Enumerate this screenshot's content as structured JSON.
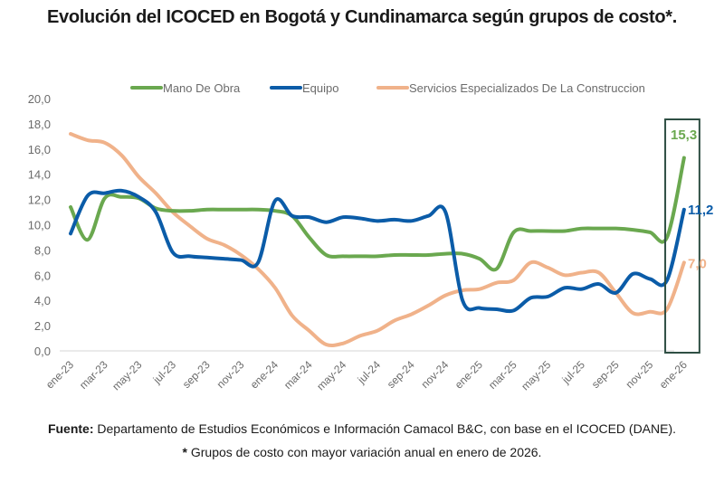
{
  "title": "Evolución del ICOCED en Bogotá y Cundinamarca según grupos de costo*.",
  "footer": {
    "source_label": "Fuente:",
    "source_text": " Departamento de Estudios Económicos e Información Camacol B&C, con base en el ICOCED (DANE).",
    "note_marker": "*",
    "note_text": " Grupos de costo con mayor variación anual en enero de 2026."
  },
  "chart_data": {
    "type": "line",
    "title": "Evolución del ICOCED en Bogotá y Cundinamarca según grupos de costo*.",
    "xlabel": "",
    "ylabel": "",
    "ylim": [
      0,
      20
    ],
    "yticks": [
      "0,0",
      "2,0",
      "4,0",
      "6,0",
      "8,0",
      "10,0",
      "12,0",
      "14,0",
      "16,0",
      "18,0",
      "20,0"
    ],
    "ytick_values": [
      0,
      2,
      4,
      6,
      8,
      10,
      12,
      14,
      16,
      18,
      20
    ],
    "grid": false,
    "legend_position": "top-center",
    "x": [
      "ene-23",
      "feb-23",
      "mar-23",
      "abr-23",
      "may-23",
      "jun-23",
      "jul-23",
      "ago-23",
      "sep-23",
      "oct-23",
      "nov-23",
      "dic-23",
      "ene-24",
      "feb-24",
      "mar-24",
      "abr-24",
      "may-24",
      "jun-24",
      "jul-24",
      "ago-24",
      "sep-24",
      "oct-24",
      "nov-24",
      "dic-24",
      "ene-25",
      "feb-25",
      "mar-25",
      "abr-25",
      "may-25",
      "jun-25",
      "jul-25",
      "ago-25",
      "sep-25",
      "oct-25",
      "nov-25",
      "dic-25",
      "ene-26"
    ],
    "xtick_labels": [
      "ene-23",
      "mar-23",
      "may-23",
      "jul-23",
      "sep-23",
      "nov-23",
      "ene-24",
      "mar-24",
      "may-24",
      "jul-24",
      "sep-24",
      "nov-24",
      "ene-25",
      "mar-25",
      "may-25",
      "jul-25",
      "sep-25",
      "nov-25",
      "ene-26"
    ],
    "series": [
      {
        "name": "Mano De Obra",
        "color": "#6aa84f",
        "values": [
          11.4,
          8.8,
          12.1,
          12.2,
          12.1,
          11.3,
          11.1,
          11.1,
          11.2,
          11.2,
          11.2,
          11.2,
          11.1,
          10.7,
          9.0,
          7.6,
          7.5,
          7.5,
          7.5,
          7.6,
          7.6,
          7.6,
          7.7,
          7.7,
          7.3,
          6.5,
          9.4,
          9.5,
          9.5,
          9.5,
          9.7,
          9.7,
          9.7,
          9.6,
          9.4,
          9.0,
          15.3
        ],
        "end_label": "15,3"
      },
      {
        "name": "Equipo",
        "color": "#0b5ca8",
        "values": [
          9.3,
          12.3,
          12.5,
          12.7,
          12.2,
          11.0,
          7.8,
          7.5,
          7.4,
          7.3,
          7.2,
          7.0,
          11.9,
          10.7,
          10.6,
          10.2,
          10.6,
          10.5,
          10.3,
          10.4,
          10.3,
          10.7,
          11.0,
          4.0,
          3.4,
          3.3,
          3.2,
          4.2,
          4.3,
          5.0,
          4.9,
          5.3,
          4.6,
          6.1,
          5.7,
          5.6,
          11.2
        ],
        "end_label": "11,2"
      },
      {
        "name": "Servicios Especializados De La Construccion",
        "color": "#f0b28a",
        "values": [
          17.2,
          16.7,
          16.5,
          15.5,
          13.8,
          12.5,
          11.0,
          9.9,
          8.9,
          8.4,
          7.6,
          6.5,
          5.0,
          2.8,
          1.6,
          0.5,
          0.6,
          1.2,
          1.6,
          2.4,
          2.9,
          3.6,
          4.4,
          4.8,
          4.9,
          5.4,
          5.6,
          7.0,
          6.6,
          6.0,
          6.2,
          6.2,
          4.6,
          3.0,
          3.1,
          3.3,
          7.0
        ],
        "end_label": "7,0"
      }
    ],
    "annotations": [
      "15,3",
      "11,2",
      "7,0"
    ],
    "highlight": {
      "from": "dic-25",
      "to": "ene-26",
      "color": "#2f4f44"
    }
  }
}
